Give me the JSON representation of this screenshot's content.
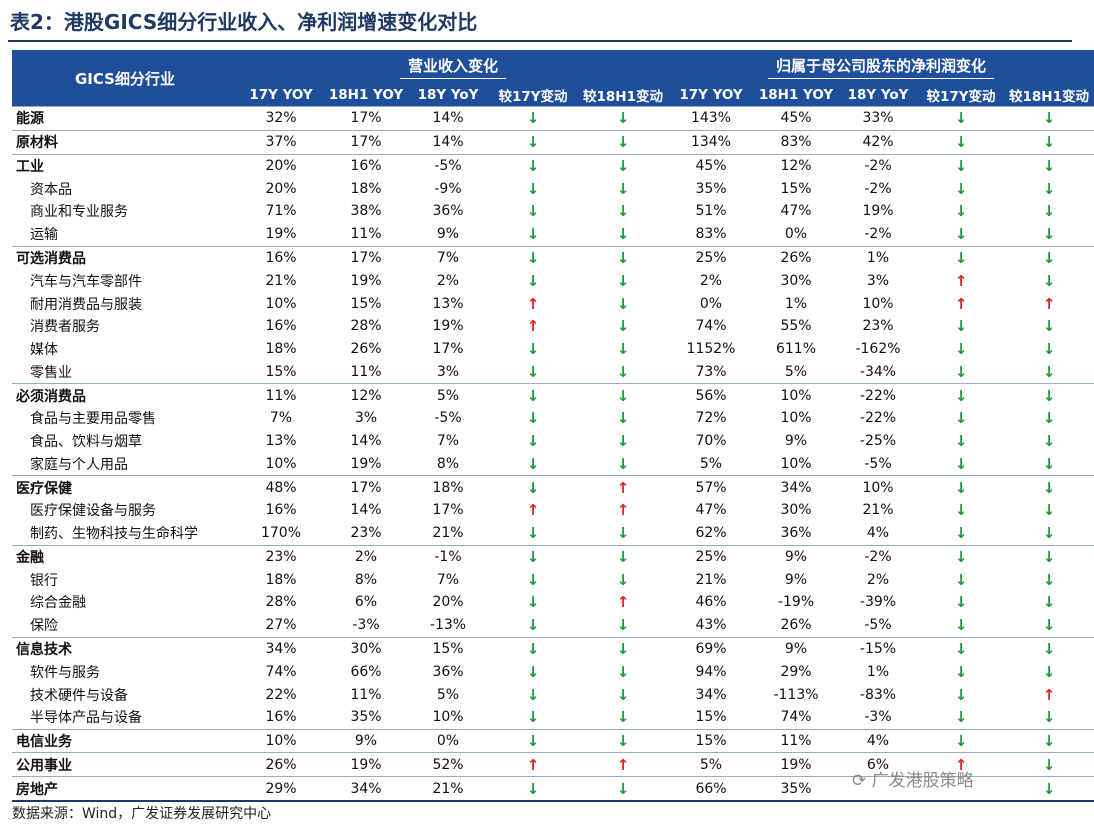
{
  "title": "表2：港股GICS细分行业收入、净利润增速变化对比",
  "table": {
    "col_header_name": "GICS细分行业",
    "group_revenue": "营业收入变化",
    "group_profit": "归属于母公司股东的净利润变化",
    "subheaders": [
      "17Y YOY",
      "18H1 YOY",
      "18Y YoY",
      "较17Y变动",
      "较18H1变动",
      "17Y YOY",
      "18H1 YOY",
      "18Y YoY",
      "较17Y变动",
      "较18H1变动"
    ],
    "rows": [
      {
        "level": "main",
        "name": "能源",
        "values": [
          "32%",
          "17%",
          "14%",
          "↓",
          "↓",
          "143%",
          "45%",
          "33%",
          "↓",
          "↓"
        ]
      },
      {
        "level": "main",
        "name": "原材料",
        "values": [
          "37%",
          "17%",
          "14%",
          "↓",
          "↓",
          "134%",
          "83%",
          "42%",
          "↓",
          "↓"
        ]
      },
      {
        "level": "main",
        "name": "工业",
        "values": [
          "20%",
          "16%",
          "-5%",
          "↓",
          "↓",
          "45%",
          "12%",
          "-2%",
          "↓",
          "↓"
        ]
      },
      {
        "level": "sub",
        "name": "资本品",
        "values": [
          "20%",
          "18%",
          "-9%",
          "↓",
          "↓",
          "35%",
          "15%",
          "-2%",
          "↓",
          "↓"
        ]
      },
      {
        "level": "sub",
        "name": "商业和专业服务",
        "values": [
          "71%",
          "38%",
          "36%",
          "↓",
          "↓",
          "51%",
          "47%",
          "19%",
          "↓",
          "↓"
        ]
      },
      {
        "level": "sub",
        "name": "运输",
        "values": [
          "19%",
          "11%",
          "9%",
          "↓",
          "↓",
          "83%",
          "0%",
          "-2%",
          "↓",
          "↓"
        ]
      },
      {
        "level": "main",
        "name": "可选消费品",
        "values": [
          "16%",
          "17%",
          "7%",
          "↓",
          "↓",
          "25%",
          "26%",
          "1%",
          "↓",
          "↓"
        ]
      },
      {
        "level": "sub",
        "name": "汽车与汽车零部件",
        "values": [
          "21%",
          "19%",
          "2%",
          "↓",
          "↓",
          "2%",
          "30%",
          "3%",
          "↑",
          "↓"
        ]
      },
      {
        "level": "sub",
        "name": "耐用消费品与服装",
        "values": [
          "10%",
          "15%",
          "13%",
          "↑",
          "↓",
          "0%",
          "1%",
          "10%",
          "↑",
          "↑"
        ]
      },
      {
        "level": "sub",
        "name": "消费者服务",
        "values": [
          "16%",
          "28%",
          "19%",
          "↑",
          "↓",
          "74%",
          "55%",
          "23%",
          "↓",
          "↓"
        ]
      },
      {
        "level": "sub",
        "name": "媒体",
        "values": [
          "18%",
          "26%",
          "17%",
          "↓",
          "↓",
          "1152%",
          "611%",
          "-162%",
          "↓",
          "↓"
        ]
      },
      {
        "level": "sub",
        "name": "零售业",
        "values": [
          "15%",
          "11%",
          "3%",
          "↓",
          "↓",
          "73%",
          "5%",
          "-34%",
          "↓",
          "↓"
        ]
      },
      {
        "level": "main",
        "name": "必须消费品",
        "values": [
          "11%",
          "12%",
          "5%",
          "↓",
          "↓",
          "56%",
          "10%",
          "-22%",
          "↓",
          "↓"
        ]
      },
      {
        "level": "sub",
        "name": "食品与主要用品零售",
        "values": [
          "7%",
          "3%",
          "-5%",
          "↓",
          "↓",
          "72%",
          "10%",
          "-22%",
          "↓",
          "↓"
        ]
      },
      {
        "level": "sub",
        "name": "食品、饮料与烟草",
        "values": [
          "13%",
          "14%",
          "7%",
          "↓",
          "↓",
          "70%",
          "9%",
          "-25%",
          "↓",
          "↓"
        ]
      },
      {
        "level": "sub",
        "name": "家庭与个人用品",
        "values": [
          "10%",
          "19%",
          "8%",
          "↓",
          "↓",
          "5%",
          "10%",
          "-5%",
          "↓",
          "↓"
        ]
      },
      {
        "level": "main",
        "name": "医疗保健",
        "values": [
          "48%",
          "17%",
          "18%",
          "↓",
          "↑",
          "57%",
          "34%",
          "10%",
          "↓",
          "↓"
        ]
      },
      {
        "level": "sub",
        "name": "医疗保健设备与服务",
        "values": [
          "16%",
          "14%",
          "17%",
          "↑",
          "↑",
          "47%",
          "30%",
          "21%",
          "↓",
          "↓"
        ]
      },
      {
        "level": "sub",
        "name": "制药、生物科技与生命科学",
        "values": [
          "170%",
          "23%",
          "21%",
          "↓",
          "↓",
          "62%",
          "36%",
          "4%",
          "↓",
          "↓"
        ]
      },
      {
        "level": "main",
        "name": "金融",
        "values": [
          "23%",
          "2%",
          "-1%",
          "↓",
          "↓",
          "25%",
          "9%",
          "-2%",
          "↓",
          "↓"
        ]
      },
      {
        "level": "sub",
        "name": "银行",
        "values": [
          "18%",
          "8%",
          "7%",
          "↓",
          "↓",
          "21%",
          "9%",
          "2%",
          "↓",
          "↓"
        ]
      },
      {
        "level": "sub",
        "name": "综合金融",
        "values": [
          "28%",
          "6%",
          "20%",
          "↓",
          "↑",
          "46%",
          "-19%",
          "-39%",
          "↓",
          "↓"
        ]
      },
      {
        "level": "sub",
        "name": "保险",
        "values": [
          "27%",
          "-3%",
          "-13%",
          "↓",
          "↓",
          "43%",
          "26%",
          "-5%",
          "↓",
          "↓"
        ]
      },
      {
        "level": "main",
        "name": "信息技术",
        "values": [
          "34%",
          "30%",
          "15%",
          "↓",
          "↓",
          "69%",
          "9%",
          "-15%",
          "↓",
          "↓"
        ]
      },
      {
        "level": "sub",
        "name": "软件与服务",
        "values": [
          "74%",
          "66%",
          "36%",
          "↓",
          "↓",
          "94%",
          "29%",
          "1%",
          "↓",
          "↓"
        ]
      },
      {
        "level": "sub",
        "name": "技术硬件与设备",
        "values": [
          "22%",
          "11%",
          "5%",
          "↓",
          "↓",
          "34%",
          "-113%",
          "-83%",
          "↓",
          "↑"
        ]
      },
      {
        "level": "sub",
        "name": "半导体产品与设备",
        "values": [
          "16%",
          "35%",
          "10%",
          "↓",
          "↓",
          "15%",
          "74%",
          "-3%",
          "↓",
          "↓"
        ]
      },
      {
        "level": "main",
        "name": "电信业务",
        "values": [
          "10%",
          "9%",
          "0%",
          "↓",
          "↓",
          "15%",
          "11%",
          "4%",
          "↓",
          "↓"
        ]
      },
      {
        "level": "main",
        "name": "公用事业",
        "values": [
          "26%",
          "19%",
          "52%",
          "↑",
          "↑",
          "5%",
          "19%",
          "6%",
          "↑",
          "↓"
        ]
      },
      {
        "level": "main",
        "name": "房地产",
        "values": [
          "29%",
          "34%",
          "21%",
          "↓",
          "↓",
          "66%",
          "35%",
          "",
          "",
          "↓"
        ]
      }
    ]
  },
  "source": "数据来源：Wind，广发证券发展研究中心",
  "watermark": "广发港股策略",
  "colors": {
    "header_bg": "#1f4e9b",
    "up": "#e0231c",
    "down": "#1a9c3a"
  }
}
